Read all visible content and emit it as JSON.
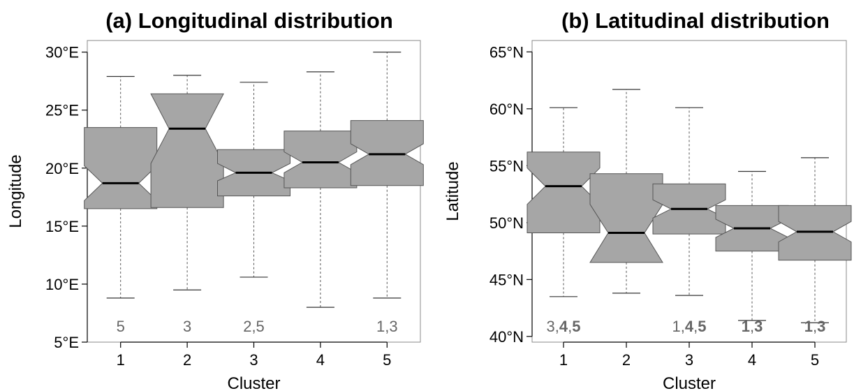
{
  "colors": {
    "box_fill": "#a6a6a6",
    "box_stroke": "#555555",
    "median": "#000000",
    "annotation": "#666666",
    "axis": "#000000"
  },
  "chart_data": [
    {
      "type": "boxplot",
      "notched": true,
      "title": "(a) Longitudinal distribution",
      "xlabel": "Cluster",
      "ylabel": "Longitude",
      "categories": [
        "1",
        "2",
        "3",
        "4",
        "5"
      ],
      "ylim": [
        5,
        31
      ],
      "yticks": [
        5,
        10,
        15,
        20,
        25,
        30
      ],
      "ytick_labels": [
        "5°E",
        "10°E",
        "15°E",
        "20°E",
        "25°E",
        "30°E"
      ],
      "boxes": [
        {
          "whisker_low": 8.8,
          "q1": 16.5,
          "notch_low": 17.2,
          "median": 18.7,
          "notch_high": 20.2,
          "q3": 23.5,
          "whisker_high": 27.9
        },
        {
          "whisker_low": 9.5,
          "q1": 16.6,
          "notch_low": 20.4,
          "median": 23.4,
          "notch_high": 26.4,
          "q3": 26.4,
          "whisker_high": 28.0
        },
        {
          "whisker_low": 10.6,
          "q1": 17.6,
          "notch_low": 18.9,
          "median": 19.6,
          "notch_high": 20.4,
          "q3": 21.6,
          "whisker_high": 27.4
        },
        {
          "whisker_low": 8.0,
          "q1": 18.3,
          "notch_low": 19.6,
          "median": 20.5,
          "notch_high": 21.4,
          "q3": 23.2,
          "whisker_high": 28.3
        },
        {
          "whisker_low": 8.8,
          "q1": 18.5,
          "notch_low": 20.3,
          "median": 21.2,
          "notch_high": 22.1,
          "q3": 24.1,
          "whisker_high": 30.0
        }
      ],
      "annotations": [
        {
          "category": "1",
          "parts": [
            {
              "text": "5",
              "bold": false
            }
          ]
        },
        {
          "category": "2",
          "parts": [
            {
              "text": "3",
              "bold": false
            }
          ]
        },
        {
          "category": "3",
          "parts": [
            {
              "text": "2,5",
              "bold": false
            }
          ]
        },
        {
          "category": "4",
          "parts": []
        },
        {
          "category": "5",
          "parts": [
            {
              "text": "1,3",
              "bold": false
            }
          ]
        }
      ]
    },
    {
      "type": "boxplot",
      "notched": true,
      "title": "(b) Latitudinal distribution",
      "xlabel": "Cluster",
      "ylabel": "Latitude",
      "categories": [
        "1",
        "2",
        "3",
        "4",
        "5"
      ],
      "ylim": [
        39.5,
        66
      ],
      "yticks": [
        40,
        45,
        50,
        55,
        60,
        65
      ],
      "ytick_labels": [
        "40°N",
        "45°N",
        "50°N",
        "55°N",
        "60°N",
        "65°N"
      ],
      "boxes": [
        {
          "whisker_low": 43.5,
          "q1": 49.1,
          "notch_low": 51.6,
          "median": 53.2,
          "notch_high": 54.8,
          "q3": 56.2,
          "whisker_high": 60.1
        },
        {
          "whisker_low": 43.8,
          "q1": 46.5,
          "notch_low": 46.5,
          "median": 49.1,
          "notch_high": 51.6,
          "q3": 54.3,
          "whisker_high": 61.7
        },
        {
          "whisker_low": 43.6,
          "q1": 49.0,
          "notch_low": 50.4,
          "median": 51.2,
          "notch_high": 52.0,
          "q3": 53.4,
          "whisker_high": 60.1
        },
        {
          "whisker_low": 41.4,
          "q1": 47.5,
          "notch_low": 48.7,
          "median": 49.5,
          "notch_high": 50.3,
          "q3": 51.5,
          "whisker_high": 54.5
        },
        {
          "whisker_low": 41.2,
          "q1": 46.7,
          "notch_low": 48.3,
          "median": 49.2,
          "notch_high": 50.1,
          "q3": 51.5,
          "whisker_high": 55.7
        }
      ],
      "annotations": [
        {
          "category": "1",
          "parts": [
            {
              "text": "3,",
              "bold": false
            },
            {
              "text": "4",
              "bold": true
            },
            {
              "text": ",",
              "bold": false
            },
            {
              "text": "5",
              "bold": true
            }
          ]
        },
        {
          "category": "2",
          "parts": []
        },
        {
          "category": "3",
          "parts": [
            {
              "text": "1,",
              "bold": false
            },
            {
              "text": "4",
              "bold": true
            },
            {
              "text": ",",
              "bold": false
            },
            {
              "text": "5",
              "bold": true
            }
          ]
        },
        {
          "category": "4",
          "parts": [
            {
              "text": "1",
              "bold": true
            },
            {
              "text": ",",
              "bold": false
            },
            {
              "text": "3",
              "bold": true
            }
          ]
        },
        {
          "category": "5",
          "parts": [
            {
              "text": "1",
              "bold": true
            },
            {
              "text": ",",
              "bold": false
            },
            {
              "text": "3",
              "bold": true
            }
          ]
        }
      ]
    }
  ]
}
